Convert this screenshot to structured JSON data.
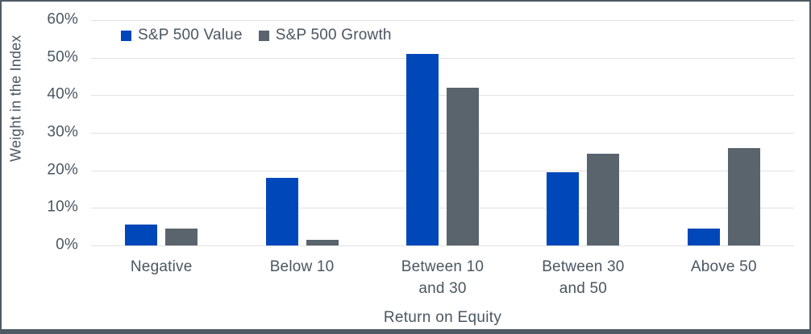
{
  "chart_data": {
    "type": "bar",
    "title": "",
    "categories": [
      "Negative",
      "Below 10",
      "Between 10 and 30",
      "Between 30 and 50",
      "Above 50"
    ],
    "series": [
      {
        "name": "S&P 500 Value",
        "color": "#0047BA",
        "values": [
          5.5,
          18,
          51,
          19.5,
          4.5
        ]
      },
      {
        "name": "S&P 500 Growth",
        "color": "#5A646D",
        "values": [
          4.5,
          1.5,
          42,
          24.5,
          26
        ]
      }
    ],
    "xlabel": "Return on Equity",
    "ylabel": "Weight in the Index",
    "ylim": [
      0,
      60
    ],
    "ytick_step": 10,
    "ytick_suffix": "%",
    "grid": true,
    "legend_position": "top-left-inside"
  },
  "colors": {
    "text": "#4A5661",
    "grid": "#E1E1E1",
    "frame_border": "#4E5A64",
    "background": "#FFFFFF"
  }
}
